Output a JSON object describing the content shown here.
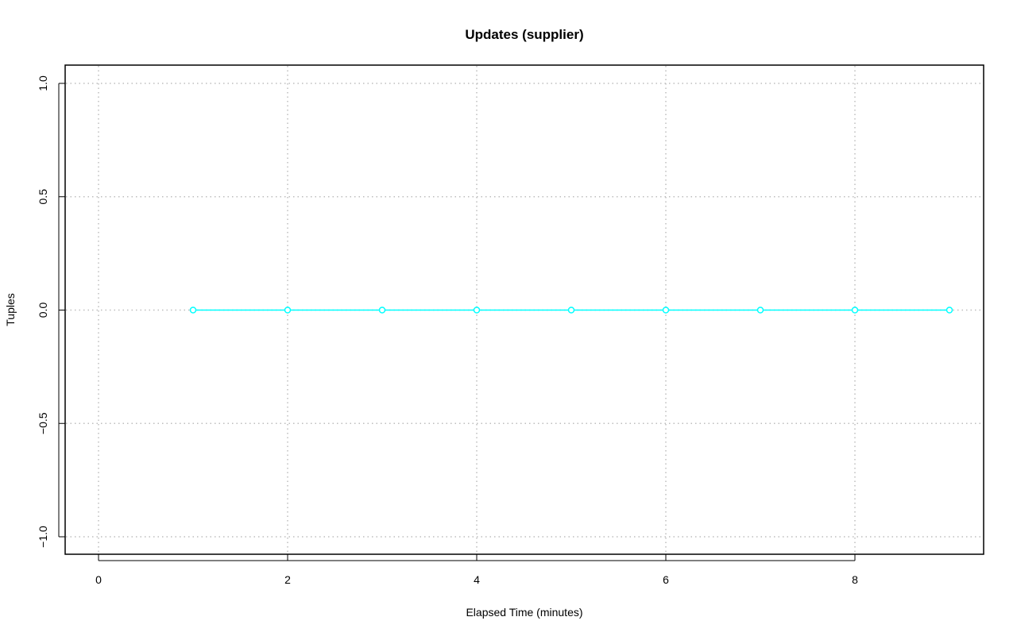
{
  "chart_data": {
    "type": "line",
    "title": "Updates (supplier)",
    "xlabel": "Elapsed Time (minutes)",
    "ylabel": "Tuples",
    "x": [
      1,
      2,
      3,
      4,
      5,
      6,
      7,
      8,
      9
    ],
    "series": [
      {
        "values": [
          0,
          0,
          0,
          0,
          0,
          0,
          0,
          0,
          0
        ],
        "color": "#00FFFF",
        "marker": "open-circle"
      }
    ],
    "xlim": [
      0,
      9
    ],
    "ylim": [
      -1,
      1
    ],
    "xticks": [
      0,
      2,
      4,
      6,
      8
    ],
    "xtick_labels": [
      "0",
      "2",
      "4",
      "6",
      "8"
    ],
    "yticks": [
      -1,
      -0.5,
      0,
      0.5,
      1
    ],
    "ytick_labels": [
      "−1.0",
      "−0.5",
      "0.0",
      "0.5",
      "1.0"
    ],
    "grid": true,
    "grid_style": "dotted",
    "grid_color": "#BEBEBE"
  }
}
